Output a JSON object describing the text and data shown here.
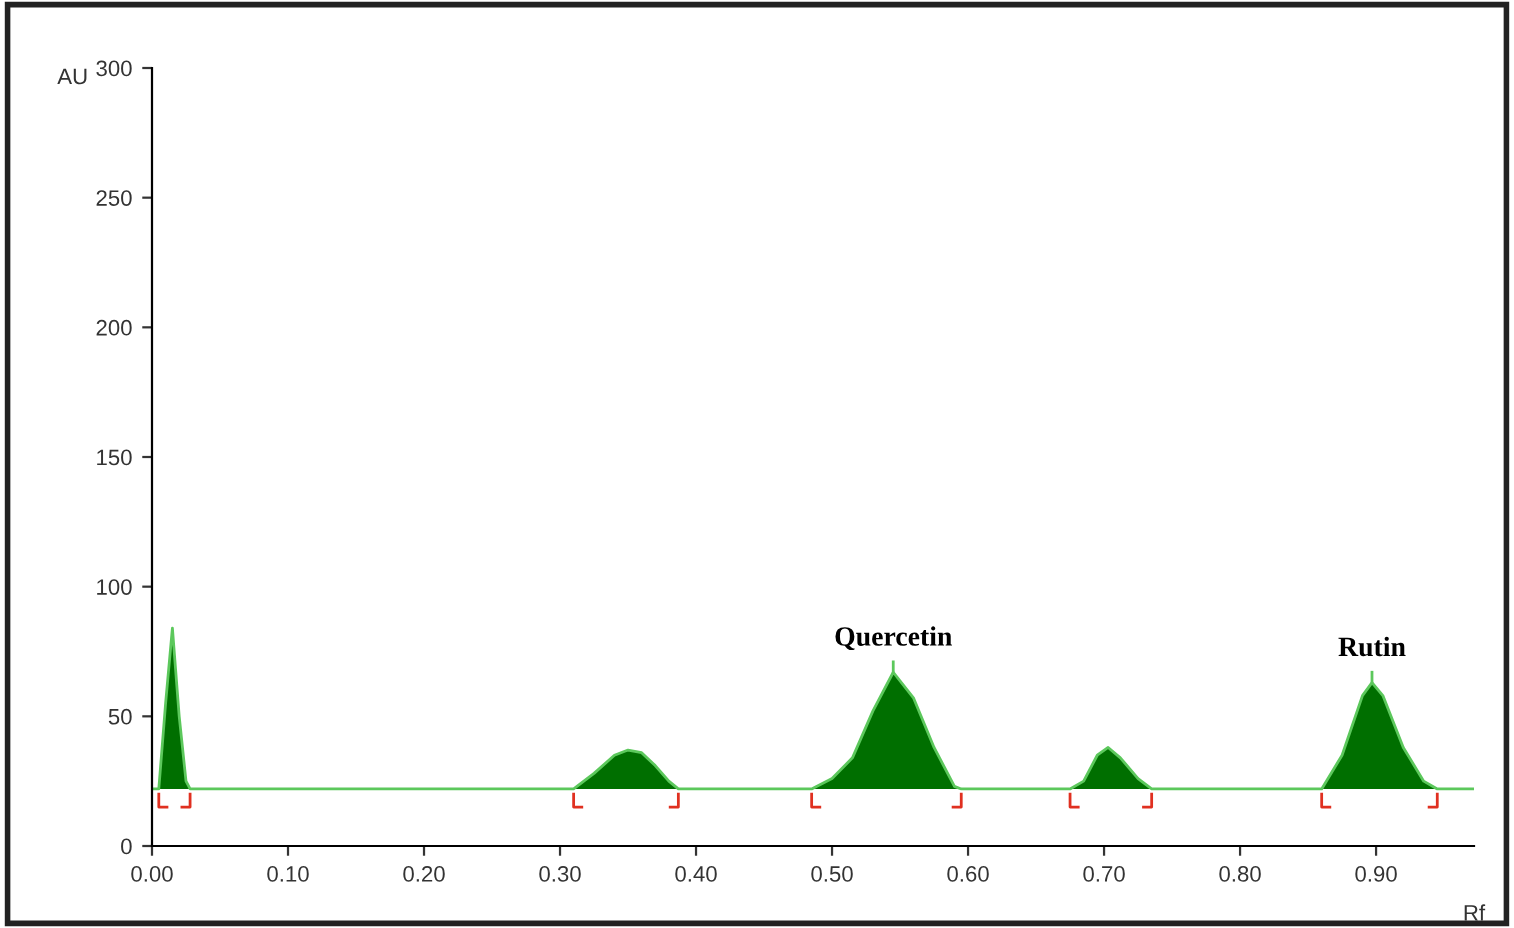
{
  "chart_data": {
    "type": "area",
    "xlabel": "Rf",
    "ylabel": "AU",
    "series": [
      {
        "color": "#006f00",
        "x": [
          0.0,
          0.005,
          0.01,
          0.015,
          0.02,
          0.025,
          0.028,
          0.1,
          0.2,
          0.31,
          0.325,
          0.34,
          0.35,
          0.36,
          0.37,
          0.38,
          0.387,
          0.45,
          0.485,
          0.5,
          0.515,
          0.53,
          0.545,
          0.56,
          0.575,
          0.59,
          0.595,
          0.64,
          0.675,
          0.685,
          0.695,
          0.703,
          0.712,
          0.725,
          0.735,
          0.8,
          0.86,
          0.875,
          0.89,
          0.897,
          0.905,
          0.92,
          0.935,
          0.945,
          0.972
        ],
        "values": [
          22,
          22,
          55,
          84,
          50,
          25,
          22,
          22,
          22,
          22,
          28,
          35,
          37,
          36,
          31,
          25,
          22,
          22,
          22,
          26,
          34,
          52,
          67,
          57,
          38,
          23,
          22,
          22,
          22,
          25,
          35,
          38,
          34,
          26,
          22,
          22,
          22,
          35,
          58,
          63,
          58,
          38,
          25,
          22,
          22
        ]
      },
      {
        "type": "line",
        "color": "#e03020",
        "x": [
          0.005,
          0.005,
          0.011
        ],
        "values": [
          20,
          15,
          15
        ]
      },
      {
        "type": "line",
        "color": "#e03020",
        "x": [
          0.022,
          0.028,
          0.028
        ],
        "values": [
          15,
          15,
          20
        ]
      },
      {
        "type": "line",
        "color": "#e03020",
        "x": [
          0.31,
          0.31,
          0.316
        ],
        "values": [
          20,
          15,
          15
        ]
      },
      {
        "type": "line",
        "color": "#e03020",
        "x": [
          0.381,
          0.387,
          0.387
        ],
        "values": [
          15,
          15,
          20
        ]
      },
      {
        "type": "line",
        "color": "#e03020",
        "x": [
          0.485,
          0.485,
          0.491
        ],
        "values": [
          20,
          15,
          15
        ]
      },
      {
        "type": "line",
        "color": "#e03020",
        "x": [
          0.589,
          0.595,
          0.595
        ],
        "values": [
          15,
          15,
          20
        ]
      },
      {
        "type": "line",
        "color": "#e03020",
        "x": [
          0.675,
          0.675,
          0.681
        ],
        "values": [
          20,
          15,
          15
        ]
      },
      {
        "type": "line",
        "color": "#e03020",
        "x": [
          0.729,
          0.735,
          0.735
        ],
        "values": [
          15,
          15,
          20
        ]
      },
      {
        "type": "line",
        "color": "#e03020",
        "x": [
          0.86,
          0.86,
          0.866
        ],
        "values": [
          20,
          15,
          15
        ]
      },
      {
        "type": "line",
        "color": "#e03020",
        "x": [
          0.939,
          0.945,
          0.945
        ],
        "values": [
          15,
          15,
          20
        ]
      }
    ],
    "annotations": [
      {
        "text": "Quercetin",
        "x": 0.545,
        "y": 67
      },
      {
        "text": "Rutin",
        "x": 0.897,
        "y": 63
      }
    ],
    "xlim": [
      0,
      0.972
    ],
    "ylim": [
      0,
      300
    ],
    "xticks": [
      {
        "value": 0,
        "label": "0.00"
      },
      {
        "value": 0.1,
        "label": "0.10"
      },
      {
        "value": 0.2,
        "label": "0.20"
      },
      {
        "value": 0.3,
        "label": "0.30"
      },
      {
        "value": 0.4,
        "label": "0.40"
      },
      {
        "value": 0.5,
        "label": "0.50"
      },
      {
        "value": 0.6,
        "label": "0.60"
      },
      {
        "value": 0.7,
        "label": "0.70"
      },
      {
        "value": 0.8,
        "label": "0.80"
      },
      {
        "value": 0.9,
        "label": "0.90"
      }
    ],
    "yticks": [
      0,
      50,
      100,
      150,
      200,
      250,
      300
    ],
    "grid": false
  }
}
